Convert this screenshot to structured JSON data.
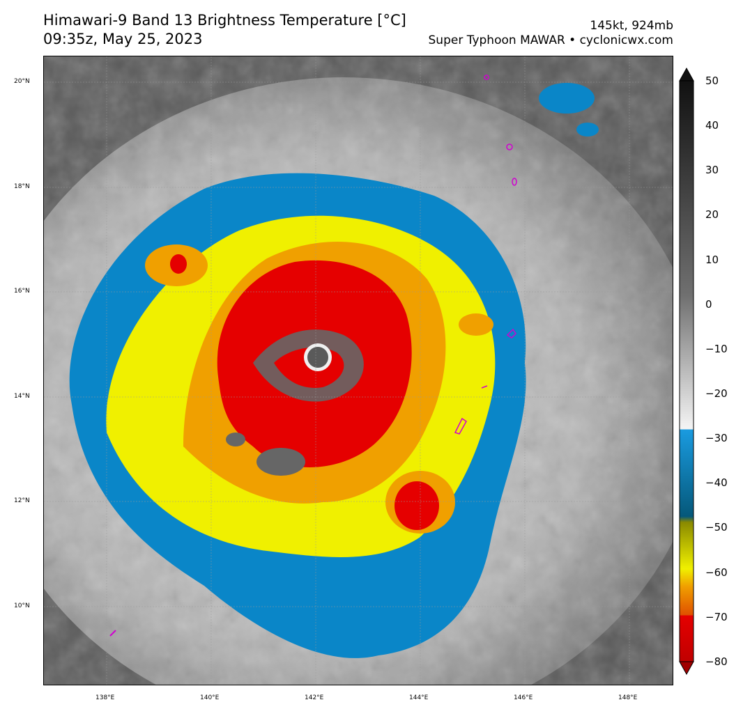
{
  "header": {
    "title": "Himawari-9 Band 13 Brightness Temperature [°C]",
    "datetime": "09:35z, May 25, 2023",
    "intensity": "145kt, 924mb",
    "storm_credit": "Super Typhoon MAWAR • cyclonicwx.com"
  },
  "map": {
    "lat_labels": [
      "20°N",
      "18°N",
      "16°N",
      "14°N",
      "12°N",
      "10°N"
    ],
    "lon_labels": [
      "138°E",
      "140°E",
      "142°E",
      "144°E",
      "146°E",
      "148°E"
    ],
    "storm_center": {
      "lon": 142.0,
      "lat": 14.8
    }
  },
  "colorbar": {
    "labels": [
      "50",
      "40",
      "30",
      "20",
      "10",
      "0",
      "−10",
      "−20",
      "−30",
      "−40",
      "−50",
      "−60",
      "−70",
      "−80"
    ],
    "range": [
      -80,
      50
    ],
    "colors": {
      "red": "#e50000",
      "orange": "#f0a000",
      "yellow": "#f0f000",
      "blue": "#0a86c8",
      "gray_dark": "#222222",
      "gray_light": "#f0f0f0"
    }
  }
}
